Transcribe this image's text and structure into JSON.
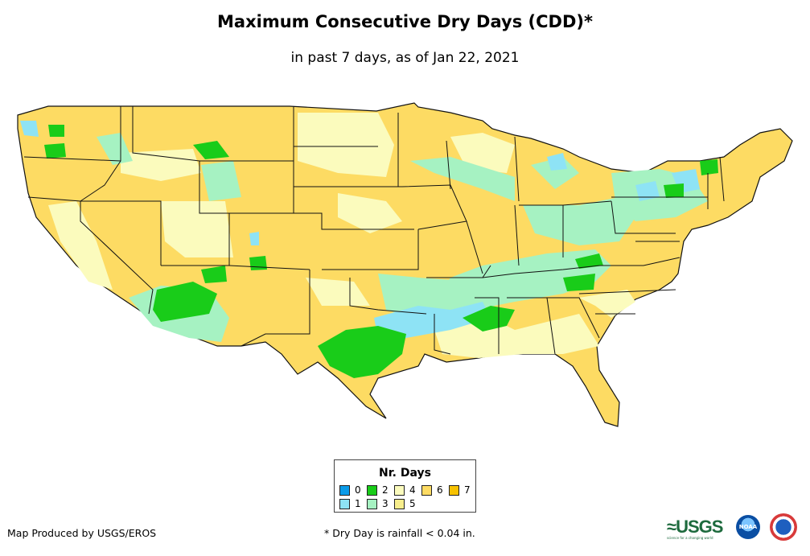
{
  "title": "Maximum Consecutive Dry Days (CDD)*",
  "subtitle": "in past 7 days, as of Jan 22, 2021",
  "legend": {
    "title": "Nr. Days",
    "items": [
      {
        "label": "0",
        "color": "#0a9be8"
      },
      {
        "label": "1",
        "color": "#8ee3f5"
      },
      {
        "label": "2",
        "color": "#19cc19"
      },
      {
        "label": "3",
        "color": "#a6f2c2"
      },
      {
        "label": "4",
        "color": "#fbfbbd"
      },
      {
        "label": "5",
        "color": "#f8ee8c"
      },
      {
        "label": "6",
        "color": "#fddb63"
      },
      {
        "label": "7",
        "color": "#f7c200"
      }
    ]
  },
  "footer": {
    "credit": "Map Produced by USGS/EROS",
    "note": "* Dry Day is rainfall < 0.04 in."
  },
  "logos": {
    "usgs": "≈USGS",
    "usgs_tagline": "science for a changing world",
    "noaa": "NOAA",
    "nws": "national-weather-service-seal"
  },
  "colors": {
    "state_border": "#111111",
    "background": "#ffffff"
  }
}
